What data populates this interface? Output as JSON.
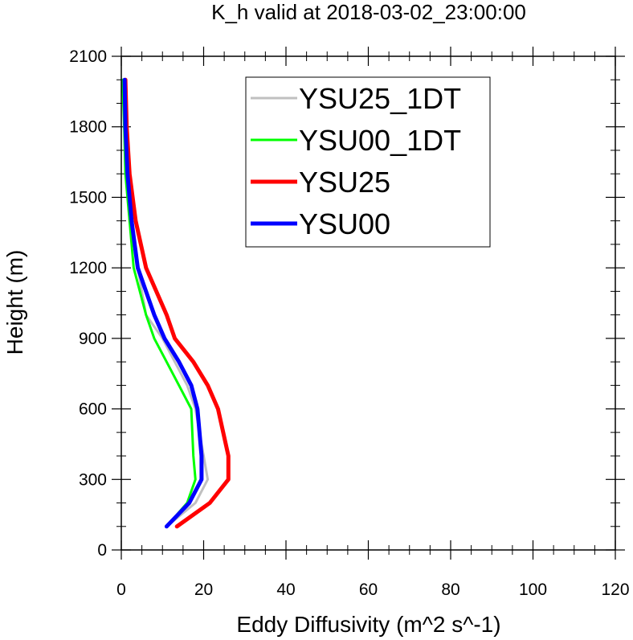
{
  "chart_data": {
    "type": "line",
    "title": "K_h valid at 2018-03-02_23:00:00",
    "xlabel": "Eddy Diffusivity (m^2 s^-1)",
    "ylabel": "Height (m)",
    "xlim": [
      0,
      120
    ],
    "ylim": [
      0,
      2100
    ],
    "xticks": [
      0,
      20,
      40,
      60,
      80,
      100,
      120
    ],
    "yticks": [
      0,
      300,
      600,
      900,
      1200,
      1500,
      1800,
      2100
    ],
    "xtick_labels": [
      "0",
      "20",
      "40",
      "60",
      "80",
      "100",
      "120"
    ],
    "ytick_labels": [
      "0",
      "300",
      "600",
      "900",
      "1200",
      "1500",
      "1800",
      "2100"
    ],
    "grid": false,
    "legend_placement": "top-center",
    "series": [
      {
        "name": "YSU25_1DT",
        "color": "#c0c0c0",
        "points": [
          [
            11,
            100
          ],
          [
            18,
            200
          ],
          [
            21,
            300
          ],
          [
            20,
            400
          ],
          [
            18,
            600
          ],
          [
            16,
            700
          ],
          [
            13,
            800
          ],
          [
            10,
            900
          ],
          [
            6,
            1000
          ],
          [
            4,
            1200
          ],
          [
            2.5,
            1400
          ],
          [
            1.5,
            1600
          ],
          [
            1,
            1800
          ],
          [
            0.5,
            2000
          ]
        ]
      },
      {
        "name": "YSU00_1DT",
        "color": "#00ff00",
        "points": [
          [
            11,
            100
          ],
          [
            16,
            200
          ],
          [
            18,
            300
          ],
          [
            17.5,
            400
          ],
          [
            17,
            600
          ],
          [
            14,
            700
          ],
          [
            11,
            800
          ],
          [
            8,
            900
          ],
          [
            6,
            1000
          ],
          [
            3,
            1200
          ],
          [
            2,
            1400
          ],
          [
            1,
            1600
          ],
          [
            0.7,
            1800
          ],
          [
            0.3,
            2000
          ]
        ]
      },
      {
        "name": "YSU25",
        "color": "#ff0000",
        "points": [
          [
            13.5,
            100
          ],
          [
            21.5,
            200
          ],
          [
            26,
            300
          ],
          [
            26,
            400
          ],
          [
            23.5,
            600
          ],
          [
            21,
            700
          ],
          [
            17.5,
            800
          ],
          [
            13,
            900
          ],
          [
            11,
            1000
          ],
          [
            6,
            1200
          ],
          [
            3.5,
            1400
          ],
          [
            2,
            1600
          ],
          [
            1.3,
            1800
          ],
          [
            1,
            2000
          ]
        ]
      },
      {
        "name": "YSU00",
        "color": "#0000ff",
        "points": [
          [
            11,
            100
          ],
          [
            16.5,
            200
          ],
          [
            19.5,
            300
          ],
          [
            19.5,
            400
          ],
          [
            18.5,
            600
          ],
          [
            17,
            700
          ],
          [
            14,
            800
          ],
          [
            10.5,
            900
          ],
          [
            8,
            1000
          ],
          [
            4,
            1200
          ],
          [
            2.5,
            1400
          ],
          [
            1.5,
            1600
          ],
          [
            1,
            1800
          ],
          [
            0.8,
            2000
          ]
        ]
      }
    ]
  }
}
